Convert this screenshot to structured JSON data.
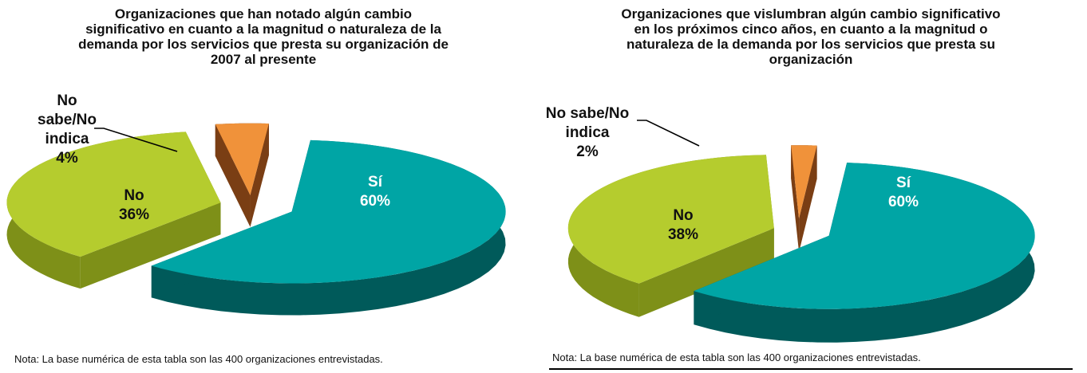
{
  "chart_data": [
    {
      "type": "pie",
      "title_lines": [
        "Organizaciones que han notado algún cambio",
        "significativo en cuanto a la magnitud o naturaleza de la",
        "demanda por los servicios que presta su organización de",
        "2007 al presente"
      ],
      "slices": [
        {
          "label": "Sí",
          "value": 60,
          "value_label": "60%",
          "color": "#00A5A5",
          "side": "#005A5A"
        },
        {
          "label": "No",
          "value": 36,
          "value_label": "36%",
          "color": "#B5CC2E",
          "side": "#7E9018"
        },
        {
          "label": "No sabe/No indica",
          "label_lines": [
            "No",
            "sabe/No",
            "indica"
          ],
          "value": 4,
          "value_label": "4%",
          "color": "#F0923A",
          "side": "#7A3E14"
        }
      ],
      "note": "Nota: La base numérica de esta tabla son las 400 organizaciones entrevistadas."
    },
    {
      "type": "pie",
      "title_lines": [
        "Organizaciones que vislumbran algún cambio significativo",
        "en los próximos cinco años, en cuanto a la magnitud o",
        "naturaleza de la demanda por los servicios que presta su",
        "organización"
      ],
      "slices": [
        {
          "label": "Sí",
          "value": 60,
          "value_label": "60%",
          "color": "#00A5A5",
          "side": "#005A5A"
        },
        {
          "label": "No",
          "value": 38,
          "value_label": "38%",
          "color": "#B5CC2E",
          "side": "#7E9018"
        },
        {
          "label": "No sabe/No indica",
          "label_lines": [
            "No sabe/No",
            "indica"
          ],
          "value": 2,
          "value_label": "2%",
          "color": "#F0923A",
          "side": "#7A3E14"
        }
      ],
      "note": "Nota: La base numérica de esta tabla son las 400 organizaciones entrevistadas."
    }
  ]
}
